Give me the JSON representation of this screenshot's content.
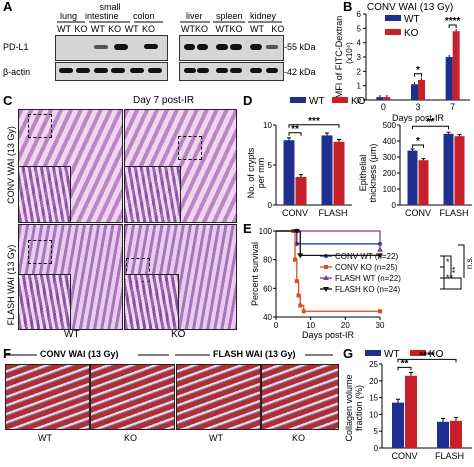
{
  "panels": {
    "A": "A",
    "B": "B",
    "C": "C",
    "D": "D",
    "E": "E",
    "F": "F",
    "G": "G"
  },
  "panel_a": {
    "tissues_left": [
      "lung",
      "small\nintestine",
      "colon"
    ],
    "tissue_lung": "lung",
    "tissue_si_1": "small",
    "tissue_si_2": "intestine",
    "tissue_colon": "colon",
    "tissue_liver": "liver",
    "tissue_spleen": "spleen",
    "tissue_kidney": "kidney",
    "genotype_row_left": "WT KO WT KO WT KO",
    "genotype_row_right": "WTKO WTKO WT KO",
    "row_pdl1": "PD-L1",
    "row_actin": "β-actin",
    "mw_pdl1": "-55 kDa",
    "mw_actin": "-42 kDa"
  },
  "panel_c": {
    "title": "Day 7 post-IR",
    "row_conv": "CONV WAI (13 Gy)",
    "row_flash": "FLASH WAI (13 Gy)",
    "col_wt": "WT",
    "col_ko": "KO"
  },
  "panel_f": {
    "header_conv": "CONV WAI (13 Gy)",
    "header_flash": "FLASH WAI (13 Gy)",
    "labels": [
      "WT",
      "KO",
      "WT",
      "KO"
    ]
  },
  "colors": {
    "wt": "#1f2f8f",
    "ko": "#c8202a"
  },
  "chart_data": [
    {
      "id": "B",
      "type": "bar",
      "title": "CONV WAI (13 Gy)",
      "xlabel": "Days post-IR",
      "ylabel": "MFI of FITC-Dextran",
      "ylabel_unit": "(x10⁴)",
      "categories": [
        "0",
        "3",
        "7"
      ],
      "ylim": [
        0,
        6
      ],
      "yticks": [
        0,
        1,
        2,
        3,
        4,
        5,
        6
      ],
      "series": [
        {
          "name": "WT",
          "values": [
            0.2,
            1.1,
            3.0
          ]
        },
        {
          "name": "KO",
          "values": [
            0.2,
            1.4,
            4.8
          ]
        }
      ],
      "annotations": [
        "*",
        "****"
      ]
    },
    {
      "id": "D-left",
      "type": "bar",
      "ylabel_1": "No. of crypts",
      "ylabel_2": "per mm",
      "categories": [
        "CONV",
        "FLASH"
      ],
      "ylim": [
        0,
        10
      ],
      "yticks": [
        0,
        5,
        10
      ],
      "series": [
        {
          "name": "WT",
          "values": [
            8.1,
            8.7
          ]
        },
        {
          "name": "KO",
          "values": [
            3.5,
            7.9
          ]
        }
      ],
      "annotations": [
        "**",
        "***"
      ]
    },
    {
      "id": "D-right",
      "type": "bar",
      "ylabel_1": "Epithelial",
      "ylabel_2": "thickness (μm)",
      "categories": [
        "CONV",
        "FLASH"
      ],
      "ylim": [
        0,
        500
      ],
      "yticks": [
        0,
        100,
        200,
        300,
        400,
        500
      ],
      "series": [
        {
          "name": "WT",
          "values": [
            340,
            445
          ]
        },
        {
          "name": "KO",
          "values": [
            280,
            430
          ]
        }
      ],
      "annotations": [
        "*",
        "**"
      ]
    },
    {
      "id": "E",
      "type": "line",
      "xlabel": "Days post-IR",
      "ylabel": "Percent survival",
      "xlim": [
        0,
        30
      ],
      "ylim": [
        40,
        100
      ],
      "xticks": [
        0,
        10,
        20,
        30
      ],
      "yticks": [
        40,
        60,
        80,
        100
      ],
      "series": [
        {
          "name": "CONV WT (n=22)",
          "color": "#1f2f8f",
          "marker": "circle",
          "x": [
            0,
            5,
            6,
            30
          ],
          "y": [
            100,
            100,
            91,
            91
          ]
        },
        {
          "name": "CONV KO (n=25)",
          "color": "#e04a1a",
          "marker": "square",
          "x": [
            0,
            5,
            5.5,
            6,
            6.5,
            7,
            8,
            30
          ],
          "y": [
            100,
            100,
            80,
            65,
            55,
            48,
            44,
            44
          ]
        },
        {
          "name": "FLASH WT (n=22)",
          "color": "#7a3fa0",
          "marker": "triangle-up",
          "x": [
            0,
            6,
            30
          ],
          "y": [
            100,
            100,
            87
          ]
        },
        {
          "name": "FLASH KO (n=24)",
          "color": "#111111",
          "marker": "triangle-down",
          "x": [
            0,
            6,
            7,
            30
          ],
          "y": [
            100,
            100,
            83,
            83
          ]
        }
      ],
      "annotations": [
        "*",
        "**",
        "**",
        "n.s."
      ]
    },
    {
      "id": "G",
      "type": "bar",
      "ylabel_1": "Collagen volume",
      "ylabel_2": "fraction (%)",
      "categories": [
        "CONV",
        "FLASH"
      ],
      "ylim": [
        0,
        25
      ],
      "yticks": [
        0,
        5,
        10,
        15,
        20,
        25
      ],
      "series": [
        {
          "name": "WT",
          "values": [
            13.5,
            7.8
          ]
        },
        {
          "name": "KO",
          "values": [
            21.5,
            8.1
          ]
        }
      ],
      "annotations": [
        "**",
        "****"
      ]
    }
  ]
}
